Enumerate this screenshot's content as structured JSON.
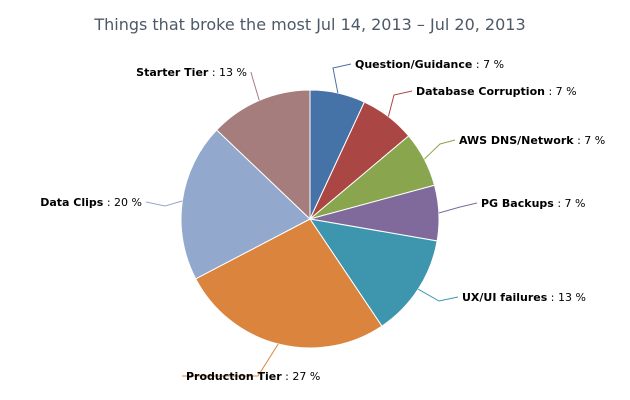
{
  "chart_data": {
    "type": "pie",
    "title": "Things that broke the most Jul 14, 2013 – Jul 20, 2013",
    "unit": "%",
    "slices": [
      {
        "name": "Question/Guidance",
        "value": 7,
        "color": "#4572a7"
      },
      {
        "name": "Database Corruption",
        "value": 7,
        "color": "#aa4643"
      },
      {
        "name": "AWS DNS/Network",
        "value": 7,
        "color": "#89a54e"
      },
      {
        "name": "PG Backups",
        "value": 7,
        "color": "#80699b"
      },
      {
        "name": "UX/UI failures",
        "value": 13,
        "color": "#3d96ae"
      },
      {
        "name": "Production Tier",
        "value": 27,
        "color": "#db843d"
      },
      {
        "name": "Data Clips",
        "value": 20,
        "color": "#92a8cd"
      },
      {
        "name": "Starter Tier",
        "value": 13,
        "color": "#a47d7c"
      }
    ]
  }
}
